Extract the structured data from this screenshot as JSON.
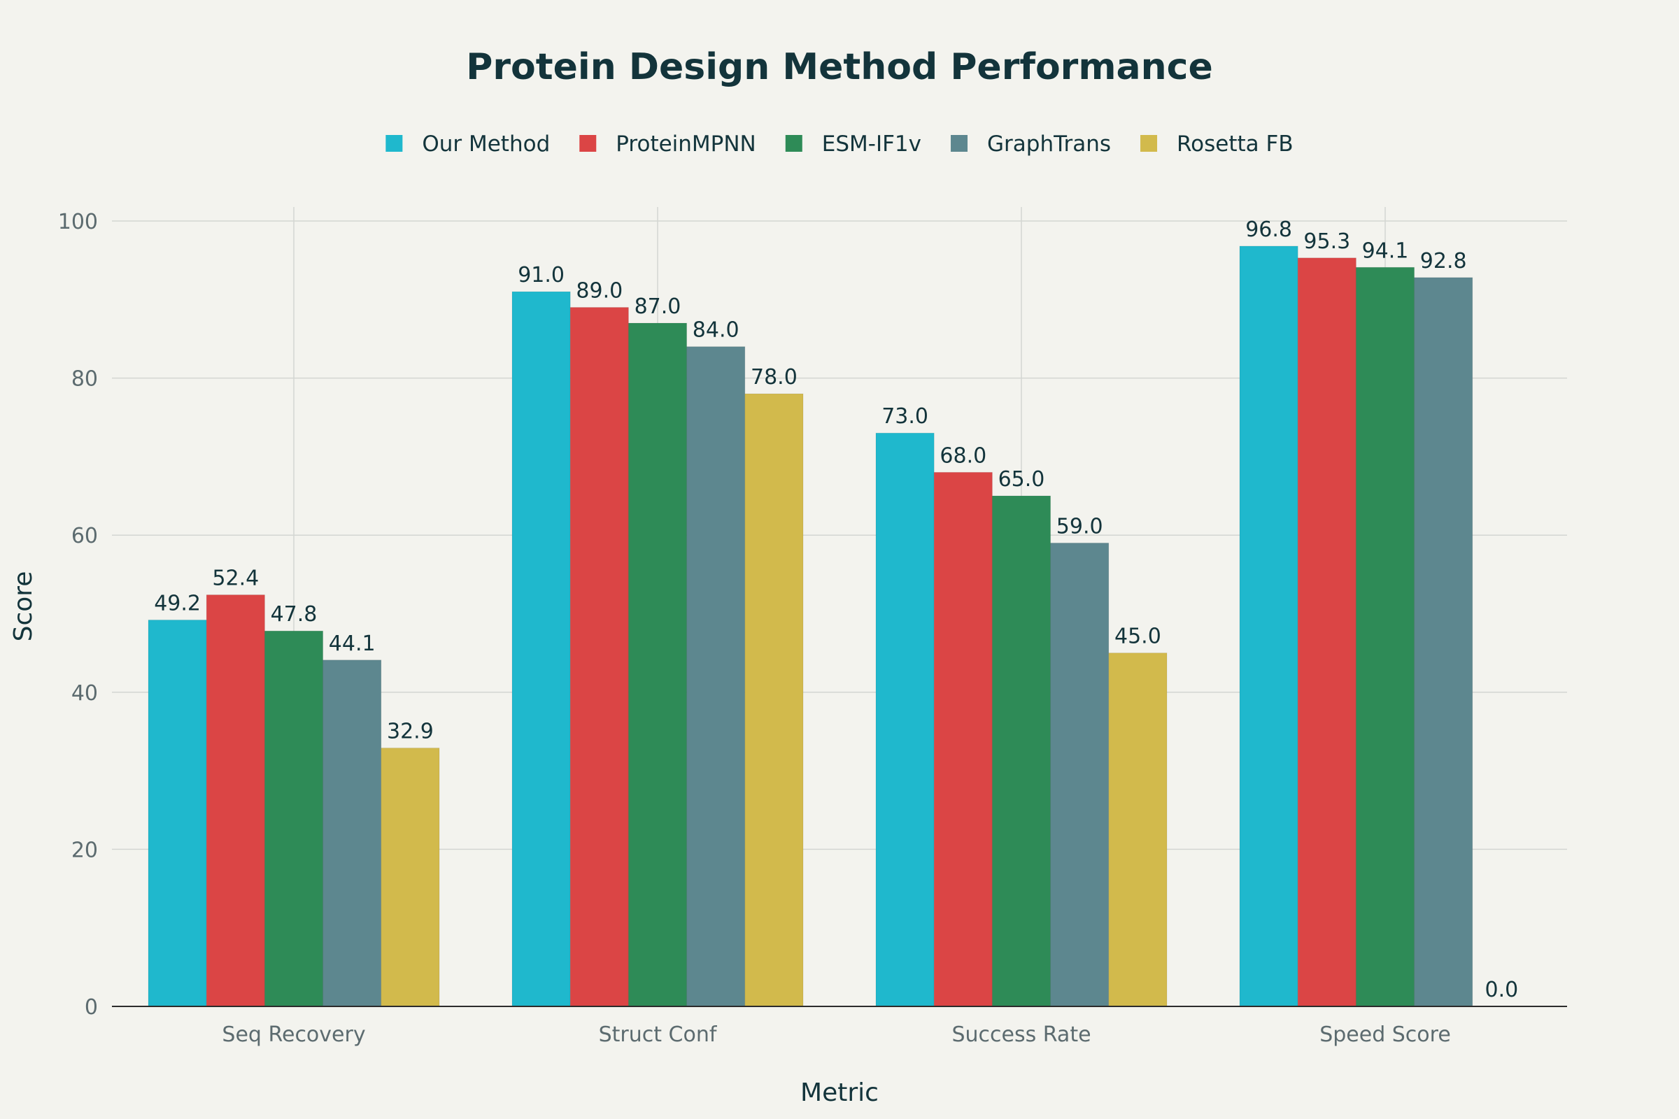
{
  "chart_data": {
    "type": "bar",
    "title": "Protein Design Method Performance",
    "xlabel": "Metric",
    "ylabel": "Score",
    "ylim": [
      0,
      100
    ],
    "yticks": [
      0,
      20,
      40,
      60,
      80,
      100
    ],
    "grid": true,
    "legend_position": "top-center",
    "categories": [
      "Seq Recovery",
      "Struct Conf",
      "Success Rate",
      "Speed Score"
    ],
    "series": [
      {
        "name": "Our Method",
        "color": "#1fb8cd",
        "values": [
          49.2,
          91.0,
          73.0,
          96.8
        ],
        "labels": [
          "49.2",
          "91.0",
          "73.0",
          "96.8"
        ]
      },
      {
        "name": "ProteinMPNN",
        "color": "#db4545",
        "values": [
          52.4,
          89.0,
          68.0,
          95.3
        ],
        "labels": [
          "52.4",
          "89.0",
          "68.0",
          "95.3"
        ]
      },
      {
        "name": "ESM-IF1v",
        "color": "#2e8b57",
        "values": [
          47.8,
          87.0,
          65.0,
          94.1
        ],
        "labels": [
          "47.8",
          "87.0",
          "65.0",
          "94.1"
        ]
      },
      {
        "name": "GraphTrans",
        "color": "#5d878f",
        "values": [
          44.1,
          84.0,
          59.0,
          92.8
        ],
        "labels": [
          "44.1",
          "84.0",
          "59.0",
          "92.8"
        ]
      },
      {
        "name": "Rosetta FB",
        "color": "#d2ba4c",
        "values": [
          32.9,
          78.0,
          45.0,
          0.0
        ],
        "labels": [
          "32.9",
          "78.0",
          "45.0",
          "0.0"
        ]
      }
    ]
  }
}
